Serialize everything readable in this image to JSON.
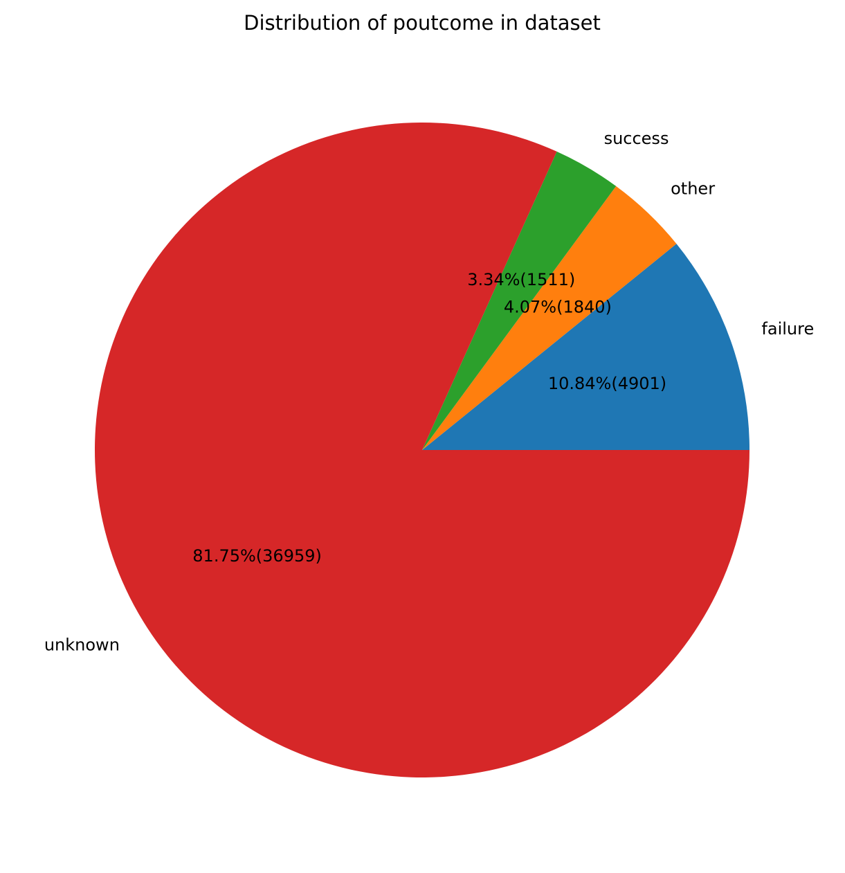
{
  "chart_data": {
    "type": "pie",
    "title": "Distribution of poutcome in dataset",
    "slices": [
      {
        "label": "failure",
        "value": 4901,
        "pct_label": "10.84%(4901)",
        "color": "#1f77b4"
      },
      {
        "label": "other",
        "value": 1840,
        "pct_label": "4.07%(1840)",
        "color": "#ff7f0e"
      },
      {
        "label": "success",
        "value": 1511,
        "pct_label": "3.34%(1511)",
        "color": "#2ca02c"
      },
      {
        "label": "unknown",
        "value": 36959,
        "pct_label": "81.75%(36959)",
        "color": "#d62728"
      }
    ],
    "start_angle_deg": 0,
    "direction": "counterclockwise",
    "legend": "none"
  }
}
